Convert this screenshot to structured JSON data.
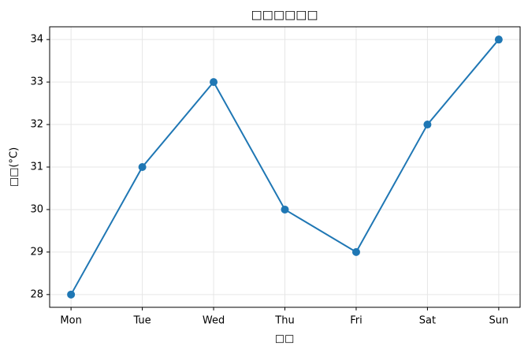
{
  "chart_data": {
    "type": "line",
    "title": "□□□□□□",
    "x_label": "□□",
    "y_label": "□□(°C)",
    "categories": [
      "Mon",
      "Tue",
      "Wed",
      "Thu",
      "Fri",
      "Sat",
      "Sun"
    ],
    "values": [
      28,
      31,
      33,
      30,
      29,
      32,
      34
    ],
    "color": "#1f77b4",
    "ylim": [
      27.7,
      34.3
    ],
    "yticks": [
      28,
      29,
      30,
      31,
      32,
      33,
      34
    ],
    "grid": true
  }
}
